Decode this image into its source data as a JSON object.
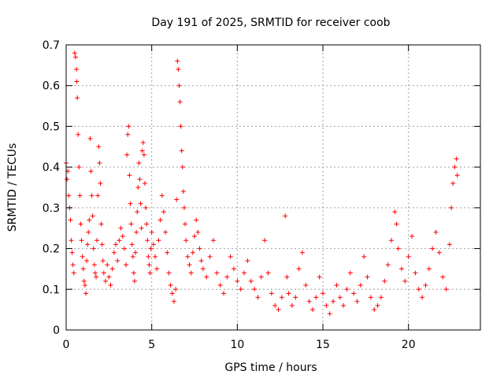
{
  "chart_data": {
    "type": "scatter",
    "title": "Day 191 of 2025, SRMTID for receiver coob",
    "xlabel": "GPS time / hours",
    "ylabel": "SRMTID / TECUs",
    "xlim": [
      0,
      24.2
    ],
    "ylim": [
      0,
      0.7
    ],
    "xticks": [
      0,
      5,
      10,
      15,
      20
    ],
    "yticks": [
      0,
      0.1,
      0.2,
      0.3,
      0.4,
      0.5,
      0.6,
      0.7
    ],
    "xtick_labels": [
      "0",
      "5",
      "10",
      "15",
      "20"
    ],
    "ytick_labels": [
      "0",
      "0.1",
      "0.2",
      "0.3",
      "0.4",
      "0.5",
      "0.6",
      "0.7"
    ],
    "grid": true,
    "marker": "+",
    "series": [
      {
        "name": "SRMTID",
        "color": "#ff0000",
        "points": [
          [
            0.0,
            0.41
          ],
          [
            0.05,
            0.37
          ],
          [
            0.1,
            0.39
          ],
          [
            0.15,
            0.33
          ],
          [
            0.2,
            0.3
          ],
          [
            0.25,
            0.27
          ],
          [
            0.3,
            0.22
          ],
          [
            0.35,
            0.19
          ],
          [
            0.4,
            0.16
          ],
          [
            0.45,
            0.14
          ],
          [
            0.5,
            0.68
          ],
          [
            0.55,
            0.67
          ],
          [
            0.6,
            0.64
          ],
          [
            0.62,
            0.61
          ],
          [
            0.65,
            0.57
          ],
          [
            0.7,
            0.48
          ],
          [
            0.75,
            0.4
          ],
          [
            0.8,
            0.33
          ],
          [
            0.85,
            0.26
          ],
          [
            0.9,
            0.22
          ],
          [
            0.95,
            0.18
          ],
          [
            1.0,
            0.15
          ],
          [
            1.05,
            0.12
          ],
          [
            1.1,
            0.11
          ],
          [
            1.15,
            0.09
          ],
          [
            1.2,
            0.17
          ],
          [
            1.25,
            0.21
          ],
          [
            1.3,
            0.24
          ],
          [
            1.35,
            0.27
          ],
          [
            1.4,
            0.47
          ],
          [
            1.45,
            0.39
          ],
          [
            1.5,
            0.33
          ],
          [
            1.55,
            0.28
          ],
          [
            1.6,
            0.2
          ],
          [
            1.65,
            0.16
          ],
          [
            1.7,
            0.14
          ],
          [
            1.75,
            0.13
          ],
          [
            1.8,
            0.22
          ],
          [
            1.85,
            0.33
          ],
          [
            1.9,
            0.45
          ],
          [
            1.95,
            0.41
          ],
          [
            2.0,
            0.36
          ],
          [
            2.05,
            0.26
          ],
          [
            2.1,
            0.21
          ],
          [
            2.15,
            0.17
          ],
          [
            2.2,
            0.14
          ],
          [
            2.3,
            0.12
          ],
          [
            2.4,
            0.16
          ],
          [
            2.5,
            0.13
          ],
          [
            2.6,
            0.11
          ],
          [
            2.7,
            0.15
          ],
          [
            2.8,
            0.19
          ],
          [
            2.9,
            0.21
          ],
          [
            3.0,
            0.17
          ],
          [
            3.1,
            0.22
          ],
          [
            3.2,
            0.25
          ],
          [
            3.3,
            0.23
          ],
          [
            3.4,
            0.2
          ],
          [
            3.5,
            0.16
          ],
          [
            3.55,
            0.43
          ],
          [
            3.6,
            0.48
          ],
          [
            3.65,
            0.5
          ],
          [
            3.7,
            0.38
          ],
          [
            3.75,
            0.31
          ],
          [
            3.8,
            0.26
          ],
          [
            3.85,
            0.21
          ],
          [
            3.9,
            0.18
          ],
          [
            3.95,
            0.14
          ],
          [
            4.0,
            0.12
          ],
          [
            4.05,
            0.19
          ],
          [
            4.1,
            0.24
          ],
          [
            4.15,
            0.29
          ],
          [
            4.2,
            0.35
          ],
          [
            4.25,
            0.41
          ],
          [
            4.3,
            0.37
          ],
          [
            4.35,
            0.31
          ],
          [
            4.4,
            0.25
          ],
          [
            4.45,
            0.44
          ],
          [
            4.5,
            0.46
          ],
          [
            4.55,
            0.43
          ],
          [
            4.6,
            0.36
          ],
          [
            4.65,
            0.3
          ],
          [
            4.7,
            0.26
          ],
          [
            4.75,
            0.22
          ],
          [
            4.8,
            0.18
          ],
          [
            4.85,
            0.16
          ],
          [
            4.9,
            0.14
          ],
          [
            4.95,
            0.2
          ],
          [
            5.0,
            0.24
          ],
          [
            5.1,
            0.21
          ],
          [
            5.2,
            0.18
          ],
          [
            5.3,
            0.15
          ],
          [
            5.4,
            0.22
          ],
          [
            5.5,
            0.27
          ],
          [
            5.6,
            0.33
          ],
          [
            5.7,
            0.29
          ],
          [
            5.8,
            0.24
          ],
          [
            5.9,
            0.19
          ],
          [
            6.0,
            0.14
          ],
          [
            6.1,
            0.11
          ],
          [
            6.2,
            0.09
          ],
          [
            6.3,
            0.07
          ],
          [
            6.4,
            0.1
          ],
          [
            6.45,
            0.32
          ],
          [
            6.5,
            0.66
          ],
          [
            6.55,
            0.64
          ],
          [
            6.6,
            0.6
          ],
          [
            6.65,
            0.56
          ],
          [
            6.7,
            0.5
          ],
          [
            6.75,
            0.44
          ],
          [
            6.8,
            0.4
          ],
          [
            6.85,
            0.34
          ],
          [
            6.9,
            0.3
          ],
          [
            6.95,
            0.26
          ],
          [
            7.0,
            0.22
          ],
          [
            7.1,
            0.18
          ],
          [
            7.2,
            0.16
          ],
          [
            7.3,
            0.14
          ],
          [
            7.4,
            0.19
          ],
          [
            7.5,
            0.23
          ],
          [
            7.6,
            0.27
          ],
          [
            7.7,
            0.24
          ],
          [
            7.8,
            0.2
          ],
          [
            7.9,
            0.17
          ],
          [
            8.0,
            0.15
          ],
          [
            8.2,
            0.13
          ],
          [
            8.4,
            0.18
          ],
          [
            8.6,
            0.22
          ],
          [
            8.8,
            0.14
          ],
          [
            9.0,
            0.11
          ],
          [
            9.2,
            0.09
          ],
          [
            9.4,
            0.13
          ],
          [
            9.6,
            0.18
          ],
          [
            9.8,
            0.15
          ],
          [
            10.0,
            0.12
          ],
          [
            10.2,
            0.1
          ],
          [
            10.4,
            0.14
          ],
          [
            10.6,
            0.17
          ],
          [
            10.8,
            0.12
          ],
          [
            11.0,
            0.1
          ],
          [
            11.2,
            0.08
          ],
          [
            11.4,
            0.13
          ],
          [
            11.6,
            0.22
          ],
          [
            11.8,
            0.14
          ],
          [
            12.0,
            0.09
          ],
          [
            12.2,
            0.06
          ],
          [
            12.4,
            0.05
          ],
          [
            12.6,
            0.08
          ],
          [
            12.8,
            0.28
          ],
          [
            12.9,
            0.13
          ],
          [
            13.0,
            0.09
          ],
          [
            13.2,
            0.06
          ],
          [
            13.4,
            0.08
          ],
          [
            13.6,
            0.15
          ],
          [
            13.8,
            0.19
          ],
          [
            14.0,
            0.11
          ],
          [
            14.2,
            0.07
          ],
          [
            14.4,
            0.05
          ],
          [
            14.6,
            0.08
          ],
          [
            14.8,
            0.13
          ],
          [
            15.0,
            0.09
          ],
          [
            15.2,
            0.06
          ],
          [
            15.4,
            0.04
          ],
          [
            15.6,
            0.07
          ],
          [
            15.8,
            0.11
          ],
          [
            16.0,
            0.08
          ],
          [
            16.2,
            0.06
          ],
          [
            16.4,
            0.1
          ],
          [
            16.6,
            0.14
          ],
          [
            16.8,
            0.09
          ],
          [
            17.0,
            0.07
          ],
          [
            17.2,
            0.11
          ],
          [
            17.4,
            0.18
          ],
          [
            17.6,
            0.13
          ],
          [
            17.8,
            0.08
          ],
          [
            18.0,
            0.05
          ],
          [
            18.2,
            0.06
          ],
          [
            18.4,
            0.08
          ],
          [
            18.6,
            0.12
          ],
          [
            18.8,
            0.16
          ],
          [
            19.0,
            0.22
          ],
          [
            19.2,
            0.29
          ],
          [
            19.3,
            0.26
          ],
          [
            19.4,
            0.2
          ],
          [
            19.6,
            0.15
          ],
          [
            19.8,
            0.12
          ],
          [
            20.0,
            0.18
          ],
          [
            20.2,
            0.23
          ],
          [
            20.4,
            0.14
          ],
          [
            20.6,
            0.1
          ],
          [
            20.8,
            0.08
          ],
          [
            21.0,
            0.11
          ],
          [
            21.2,
            0.15
          ],
          [
            21.4,
            0.2
          ],
          [
            21.6,
            0.24
          ],
          [
            21.8,
            0.19
          ],
          [
            22.0,
            0.13
          ],
          [
            22.2,
            0.1
          ],
          [
            22.4,
            0.21
          ],
          [
            22.5,
            0.3
          ],
          [
            22.6,
            0.36
          ],
          [
            22.7,
            0.4
          ],
          [
            22.8,
            0.42
          ],
          [
            22.85,
            0.38
          ]
        ]
      }
    ]
  }
}
